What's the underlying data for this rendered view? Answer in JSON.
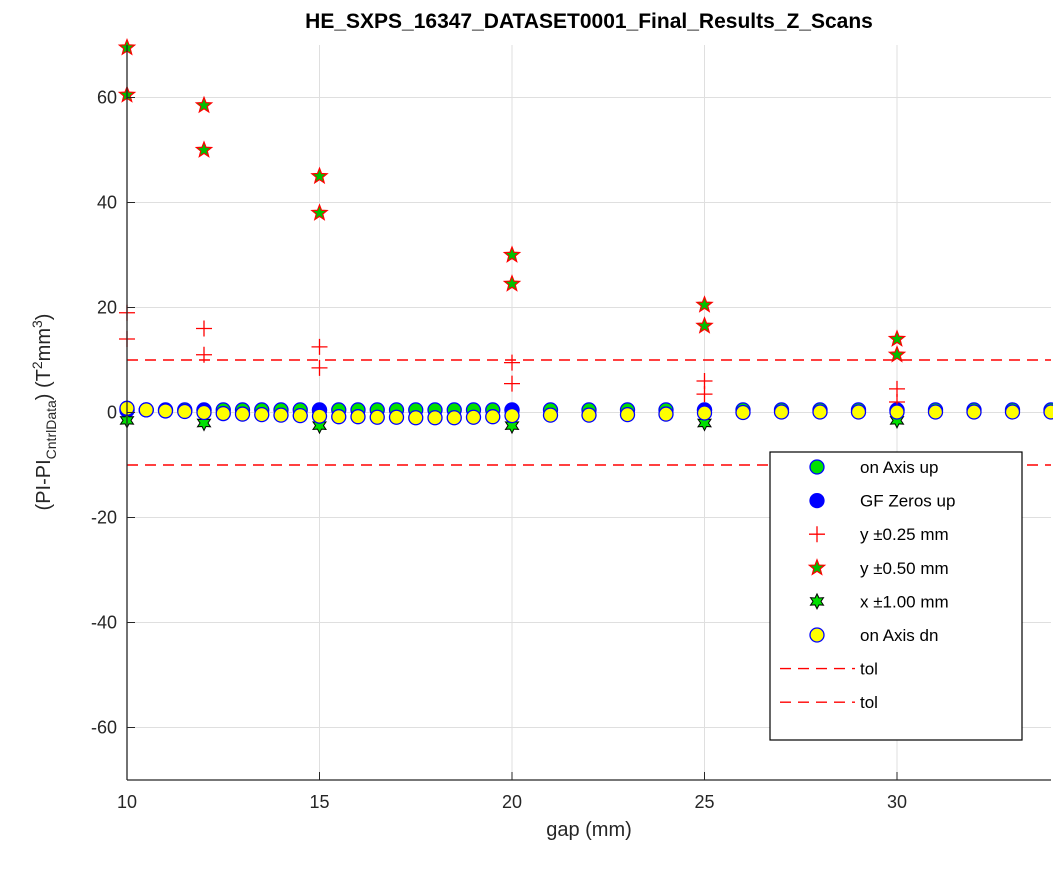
{
  "chart_data": {
    "type": "scatter",
    "title": "HE_SXPS_16347_DATASET0001_Final_Results_Z_Scans",
    "xlabel": "gap (mm)",
    "ylabel": {
      "prefix": "(PI-PI",
      "subscript": "CntrlData",
      "mid": ") (T",
      "sup1": "2",
      "mid2": "mm",
      "sup2": "3",
      "suffix": ")"
    },
    "xlim": [
      10,
      34
    ],
    "ylim": [
      -70,
      70
    ],
    "xticks": [
      10,
      15,
      20,
      25,
      30
    ],
    "yticks": [
      -60,
      -40,
      -20,
      0,
      20,
      40,
      60
    ],
    "grid": true,
    "legend_position": "lower-right",
    "series": [
      {
        "name": "on Axis up",
        "marker": "circle",
        "fill": "#00e000",
        "stroke": "#0000ff",
        "x": [
          10,
          10.5,
          11,
          11.5,
          12,
          12.5,
          13,
          13.5,
          14,
          14.5,
          15,
          15.5,
          16,
          16.5,
          17,
          17.5,
          18,
          18.5,
          19,
          19.5,
          20,
          21,
          22,
          23,
          24,
          25,
          26,
          27,
          28,
          29,
          30,
          31,
          32,
          33,
          34
        ],
        "y": [
          0.6,
          0.5,
          0.5,
          0.5,
          0.5,
          0.5,
          0.5,
          0.5,
          0.5,
          0.5,
          0.5,
          0.5,
          0.5,
          0.5,
          0.5,
          0.5,
          0.5,
          0.5,
          0.5,
          0.5,
          0.5,
          0.5,
          0.5,
          0.5,
          0.5,
          0.5,
          0.5,
          0.5,
          0.5,
          0.5,
          0.5,
          0.5,
          0.5,
          0.5,
          0.5
        ]
      },
      {
        "name": "GF Zeros up",
        "marker": "circle",
        "fill": "#0000ff",
        "stroke": "#0000ff",
        "x": [
          10,
          12,
          15,
          20,
          25,
          30
        ],
        "y": [
          0.4,
          0.4,
          0.4,
          0.4,
          0.4,
          0.4
        ]
      },
      {
        "name": "y ±0.25 mm",
        "marker": "plus",
        "fill": "none",
        "stroke": "#ff0000",
        "x": [
          10,
          10,
          12,
          12,
          15,
          15,
          20,
          20,
          25,
          25,
          30,
          30
        ],
        "y": [
          19,
          14,
          16,
          11,
          12.5,
          8.5,
          9.5,
          5.5,
          6,
          3.5,
          4.5,
          2
        ]
      },
      {
        "name": "y ±0.50 mm",
        "marker": "star",
        "fill": "#00c000",
        "stroke": "#ff0000",
        "x": [
          10,
          10,
          12,
          12,
          15,
          15,
          20,
          20,
          25,
          25,
          30,
          30
        ],
        "y": [
          69.5,
          60.5,
          58.5,
          50,
          45,
          38,
          30,
          24.5,
          20.5,
          16.5,
          14,
          11
        ]
      },
      {
        "name": "x ±1.00 mm",
        "marker": "hexagram",
        "fill": "#00e000",
        "stroke": "#000000",
        "x": [
          10,
          12,
          15,
          20,
          25,
          30
        ],
        "y": [
          -1.5,
          -2,
          -2.5,
          -2.5,
          -2,
          -1.5
        ]
      },
      {
        "name": "on Axis dn",
        "marker": "circle",
        "fill": "#ffff00",
        "stroke": "#0000ff",
        "x": [
          10,
          10.5,
          11,
          11.5,
          12,
          12.5,
          13,
          13.5,
          14,
          14.5,
          15,
          15.5,
          16,
          16.5,
          17,
          17.5,
          18,
          18.5,
          19,
          19.5,
          20,
          21,
          22,
          23,
          24,
          25,
          26,
          27,
          28,
          29,
          30,
          31,
          32,
          33,
          34
        ],
        "y": [
          0.8,
          0.5,
          0.3,
          0.2,
          0,
          -0.2,
          -0.3,
          -0.4,
          -0.5,
          -0.6,
          -0.7,
          -0.8,
          -0.8,
          -0.9,
          -0.9,
          -1,
          -1,
          -1,
          -0.9,
          -0.8,
          -0.6,
          -0.5,
          -0.5,
          -0.4,
          -0.3,
          -0.1,
          0,
          0.1,
          0.1,
          0.1,
          0.1,
          0.1,
          0.1,
          0.1,
          0.1
        ]
      },
      {
        "name": "tol",
        "marker": "dashed-line",
        "stroke": "#ff0000",
        "x": [
          10,
          34
        ],
        "y": [
          10,
          10
        ]
      },
      {
        "name": "tol",
        "marker": "dashed-line",
        "stroke": "#ff0000",
        "x": [
          10,
          34
        ],
        "y": [
          -10,
          -10
        ]
      }
    ]
  }
}
